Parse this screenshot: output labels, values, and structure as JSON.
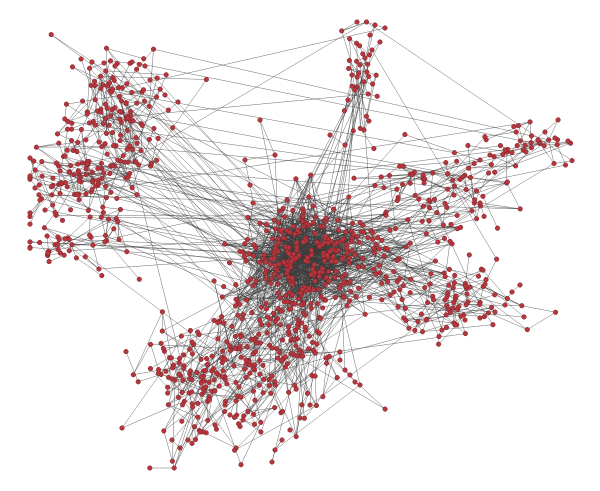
{
  "diagram": {
    "type": "network-graph",
    "labels_visible": false,
    "colors": {
      "background": "#ffffff",
      "node_fill": "#b5363d",
      "node_stroke": "#7a1f24",
      "edge": "#3c3c3c"
    },
    "clusters": [
      {
        "name": "core-hub",
        "nodes": 260
      },
      {
        "name": "upper-left-group",
        "nodes": 110
      },
      {
        "name": "left-group",
        "nodes": 100
      },
      {
        "name": "far-left-group",
        "nodes": 45
      },
      {
        "name": "top-spike",
        "nodes": 30
      },
      {
        "name": "right-group",
        "nodes": 70
      },
      {
        "name": "lower-right-group",
        "nodes": 75
      },
      {
        "name": "lower-left-group",
        "nodes": 150
      },
      {
        "name": "bottom-group",
        "nodes": 130
      },
      {
        "name": "mid-right-arm",
        "nodes": 40
      },
      {
        "name": "far-right-arm",
        "nodes": 35
      }
    ]
  }
}
